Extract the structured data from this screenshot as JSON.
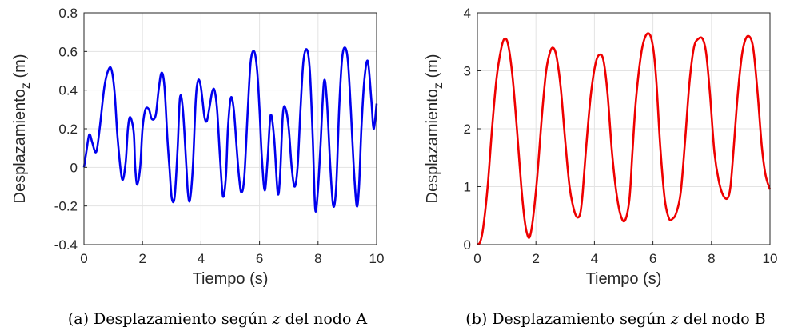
{
  "chart_data": [
    {
      "type": "line",
      "xlabel": "Tiempo (s)",
      "ylabel": "Desplazamiento",
      "ylabel_sub": "z",
      "ylabel_unit": " (m)",
      "xlim": [
        0,
        10
      ],
      "ylim": [
        -0.4,
        0.8
      ],
      "xticks": [
        "0",
        "2",
        "4",
        "6",
        "8",
        "10"
      ],
      "yticks": [
        "-0.4",
        "-0.2",
        "0",
        "0.2",
        "0.4",
        "0.6",
        "0.8"
      ],
      "grid": true,
      "color": "#0000ee",
      "caption_prefix": "(a) Desplazamiento según ",
      "caption_var": "z",
      "caption_suffix": " del nodo A",
      "series": [
        {
          "x": [
            0,
            0.08,
            0.18,
            0.28,
            0.38,
            0.45,
            0.55,
            0.7,
            0.85,
            0.95,
            1.05,
            1.15,
            1.3,
            1.42,
            1.5,
            1.58,
            1.7,
            1.75,
            1.82,
            1.92,
            2.0,
            2.1,
            2.22,
            2.32,
            2.45,
            2.55,
            2.65,
            2.75,
            2.85,
            2.92,
            3.0,
            3.1,
            3.2,
            3.28,
            3.38,
            3.5,
            3.55,
            3.62,
            3.72,
            3.82,
            3.9,
            3.98,
            4.05,
            4.12,
            4.2,
            4.3,
            4.38,
            4.46,
            4.55,
            4.65,
            4.75,
            4.85,
            4.92,
            5.02,
            5.12,
            5.22,
            5.3,
            5.38,
            5.48,
            5.6,
            5.7,
            5.82,
            5.92,
            6.0,
            6.08,
            6.18,
            6.28,
            6.38,
            6.5,
            6.62,
            6.7,
            6.8,
            6.9,
            7.0,
            7.1,
            7.2,
            7.3,
            7.4,
            7.5,
            7.62,
            7.72,
            7.82,
            7.9,
            7.98,
            8.08,
            8.2,
            8.3,
            8.42,
            8.52,
            8.62,
            8.72,
            8.82,
            8.92,
            9.02,
            9.12,
            9.22,
            9.32,
            9.4,
            9.48,
            9.58,
            9.7,
            9.82,
            9.9,
            10.0
          ],
          "y": [
            0,
            0.08,
            0.17,
            0.13,
            0.08,
            0.1,
            0.22,
            0.42,
            0.51,
            0.5,
            0.38,
            0.15,
            -0.06,
            0.02,
            0.2,
            0.26,
            0.18,
            0.0,
            -0.09,
            0.0,
            0.2,
            0.3,
            0.3,
            0.25,
            0.27,
            0.4,
            0.49,
            0.42,
            0.15,
            0.0,
            -0.16,
            -0.15,
            0.1,
            0.36,
            0.3,
            0.0,
            -0.13,
            -0.17,
            0.0,
            0.35,
            0.45,
            0.43,
            0.35,
            0.26,
            0.24,
            0.32,
            0.39,
            0.4,
            0.3,
            0.05,
            -0.15,
            -0.05,
            0.2,
            0.36,
            0.3,
            0.1,
            -0.05,
            -0.13,
            -0.05,
            0.3,
            0.55,
            0.6,
            0.5,
            0.3,
            0.05,
            -0.12,
            0.05,
            0.27,
            0.15,
            -0.13,
            -0.05,
            0.28,
            0.3,
            0.2,
            0.0,
            -0.1,
            0.0,
            0.3,
            0.55,
            0.61,
            0.5,
            0.15,
            -0.21,
            -0.15,
            0.1,
            0.44,
            0.35,
            0.0,
            -0.2,
            -0.1,
            0.3,
            0.56,
            0.62,
            0.55,
            0.3,
            0.0,
            -0.2,
            -0.1,
            0.2,
            0.45,
            0.55,
            0.35,
            0.2,
            0.33
          ]
        }
      ]
    },
    {
      "type": "line",
      "xlabel": "Tiempo (s)",
      "ylabel": "Desplazamiento",
      "ylabel_sub": "z",
      "ylabel_unit": " (m)",
      "xlim": [
        0,
        10
      ],
      "ylim": [
        0,
        4
      ],
      "xticks": [
        "0",
        "2",
        "4",
        "6",
        "8",
        "10"
      ],
      "yticks": [
        "0",
        "1",
        "2",
        "3",
        "4"
      ],
      "grid": true,
      "color": "#ee0000",
      "caption_prefix": "(b) Desplazamiento según ",
      "caption_var": "z",
      "caption_suffix": " del nodo B",
      "series": [
        {
          "x": [
            0,
            0.1,
            0.2,
            0.35,
            0.5,
            0.65,
            0.8,
            0.92,
            1.05,
            1.2,
            1.35,
            1.5,
            1.62,
            1.72,
            1.8,
            1.9,
            2.05,
            2.2,
            2.35,
            2.5,
            2.62,
            2.72,
            2.85,
            3.0,
            3.15,
            3.3,
            3.42,
            3.52,
            3.6,
            3.72,
            3.88,
            4.05,
            4.2,
            4.32,
            4.45,
            4.6,
            4.75,
            4.9,
            5.05,
            5.2,
            5.3,
            5.42,
            5.6,
            5.75,
            5.9,
            6.02,
            6.12,
            6.25,
            6.4,
            6.55,
            6.68,
            6.8,
            6.95,
            7.1,
            7.25,
            7.4,
            7.55,
            7.7,
            7.82,
            7.95,
            8.1,
            8.25,
            8.4,
            8.55,
            8.65,
            8.75,
            8.9,
            9.05,
            9.2,
            9.35,
            9.45,
            9.58,
            9.72,
            9.85,
            10.0
          ],
          "y": [
            0,
            0.05,
            0.3,
            1.0,
            2.0,
            2.85,
            3.35,
            3.55,
            3.45,
            2.9,
            2.0,
            1.0,
            0.4,
            0.15,
            0.15,
            0.45,
            1.2,
            2.2,
            3.0,
            3.35,
            3.38,
            3.2,
            2.7,
            1.8,
            1.0,
            0.6,
            0.47,
            0.55,
            0.9,
            1.7,
            2.6,
            3.15,
            3.28,
            3.15,
            2.6,
            1.6,
            0.9,
            0.5,
            0.42,
            0.8,
            1.6,
            2.5,
            3.3,
            3.6,
            3.62,
            3.35,
            2.8,
            1.7,
            0.8,
            0.45,
            0.45,
            0.55,
            0.9,
            1.8,
            2.8,
            3.4,
            3.55,
            3.55,
            3.3,
            2.6,
            1.6,
            1.1,
            0.85,
            0.8,
            1.0,
            1.6,
            2.6,
            3.3,
            3.58,
            3.55,
            3.3,
            2.6,
            1.7,
            1.2,
            0.95
          ]
        }
      ]
    }
  ]
}
